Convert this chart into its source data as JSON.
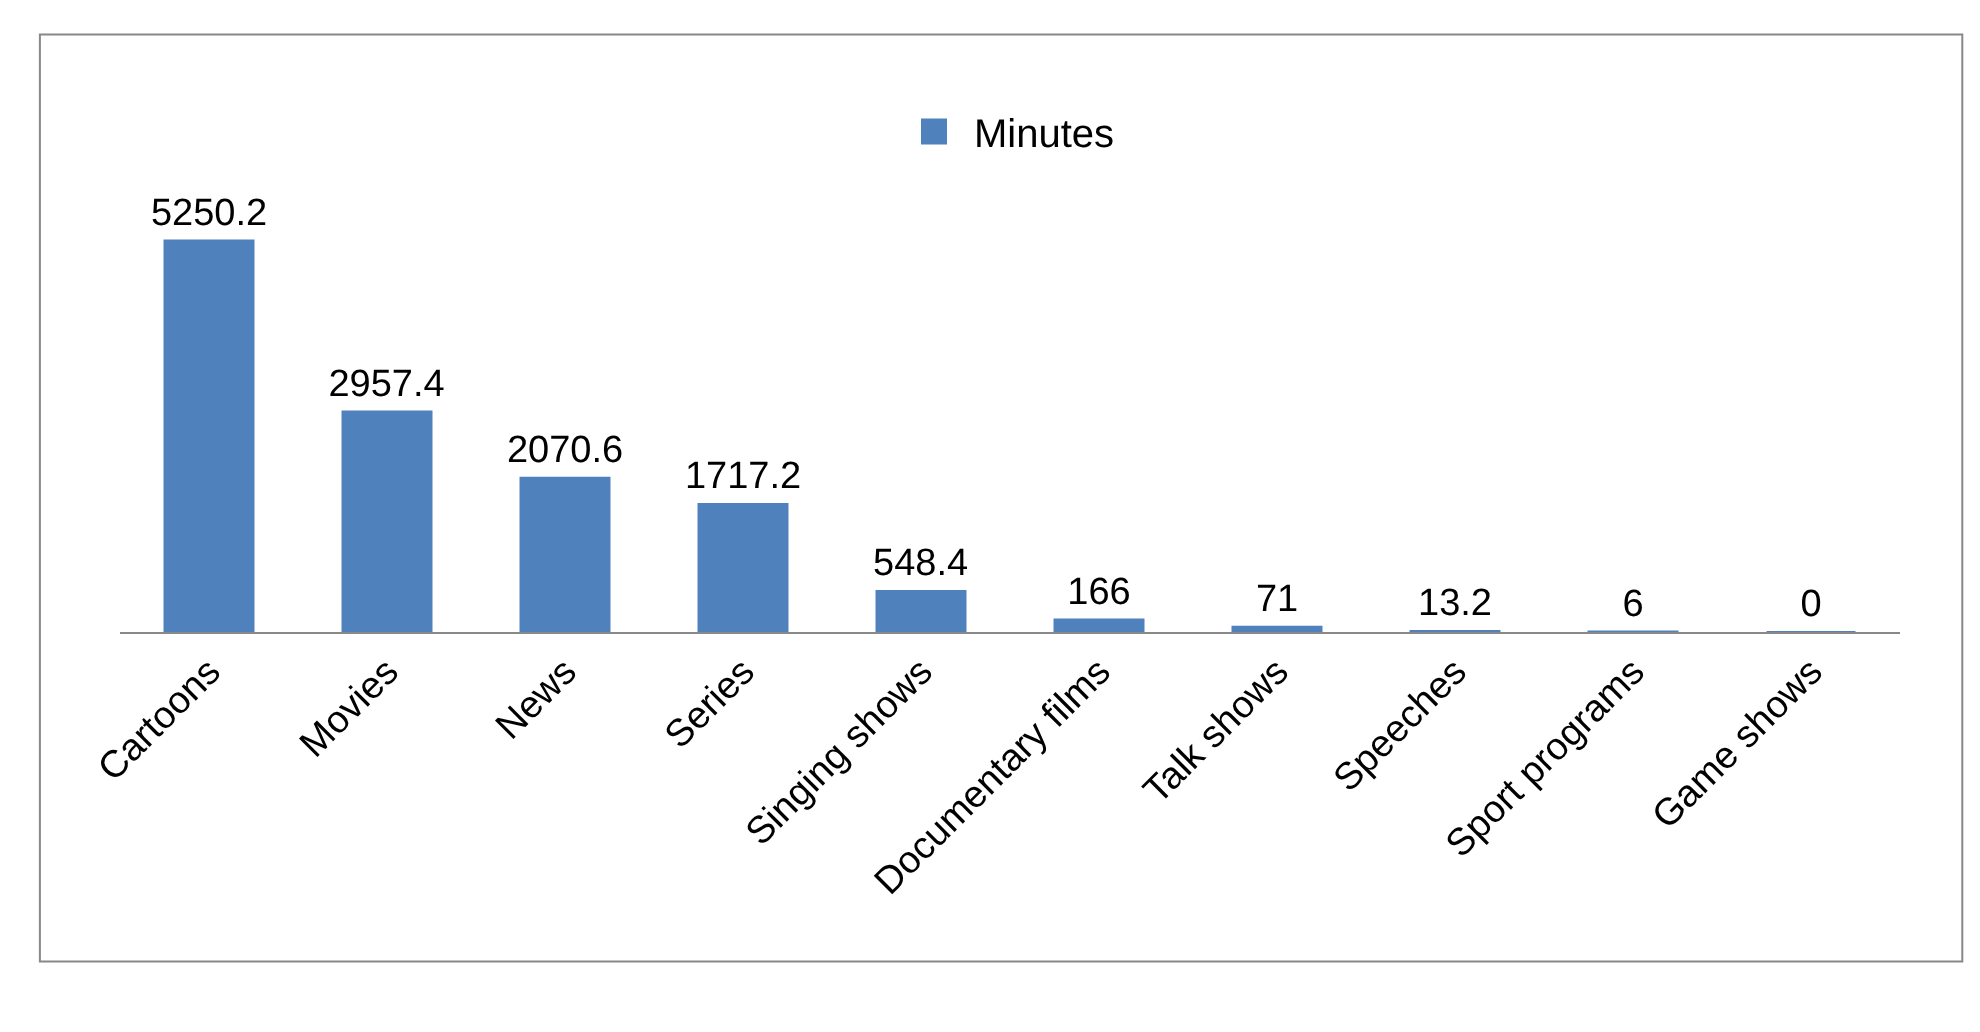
{
  "chart_data": {
    "type": "bar",
    "categories": [
      "Cartoons",
      "Movies",
      "News",
      "Series",
      "Singing shows",
      "Documentary films",
      "Talk shows",
      "Speeches",
      "Sport programs",
      "Game shows"
    ],
    "series": [
      {
        "name": "Minutes",
        "color": "#4f81bd",
        "values": [
          5250.2,
          2957.4,
          2070.6,
          1717.2,
          548.4,
          166,
          71,
          13.2,
          6,
          0
        ]
      }
    ],
    "data_labels": true,
    "legend": "top"
  }
}
